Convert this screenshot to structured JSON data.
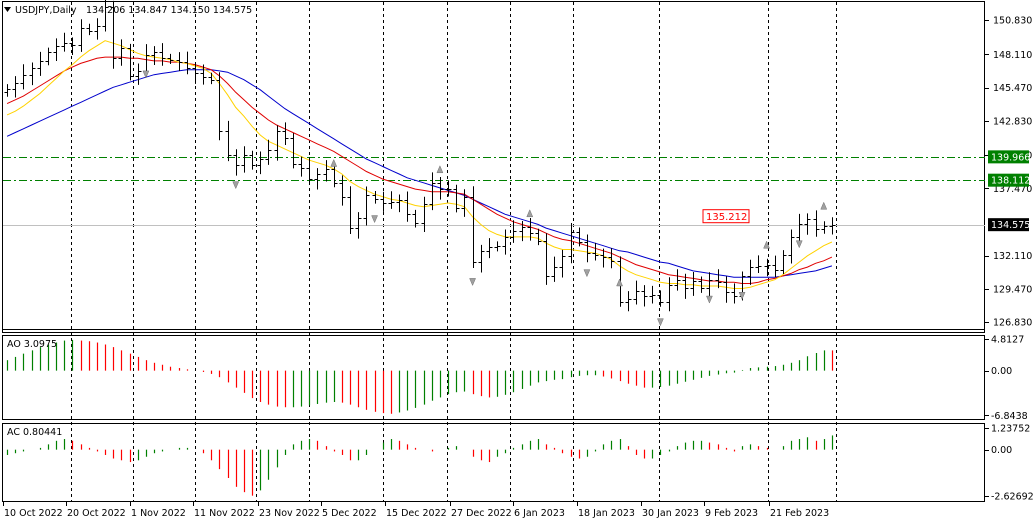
{
  "header": {
    "symbol": "USDJPY,Daily",
    "ohlc": "134.206 134.847 134.150 134.575"
  },
  "colors": {
    "bull": "#008000",
    "bear": "#ff0000",
    "ma_fast": "#ffd200",
    "ma_mid": "#e00000",
    "ma_slow": "#0000cc",
    "level_line": "#008000",
    "price_line": "#c0c0c0"
  },
  "chart_data": [
    {
      "type": "candlestick",
      "name": "price",
      "title": "USDJPY,Daily",
      "ohlc_label": "134.206 134.847 134.150 134.575",
      "y_ticks": [
        "150.830",
        "148.110",
        "145.470",
        "142.830",
        "140.110",
        "137.470",
        "134.575",
        "132.110",
        "129.470",
        "126.830"
      ],
      "ylim": [
        126.2,
        152.2
      ],
      "date_labels": [
        "10 Oct 2022",
        "20 Oct 2022",
        "1 Nov 2022",
        "11 Nov 2022",
        "23 Nov 2022",
        "5 Dec 2022",
        "15 Dec 2022",
        "27 Dec 2022",
        "6 Jan 2023",
        "18 Jan 2023",
        "30 Jan 2023",
        "9 Feb 2023",
        "21 Feb 2023"
      ],
      "horizontal_levels": [
        {
          "value": 139.966,
          "label": "139.966"
        },
        {
          "value": 138.112,
          "label": "138.112"
        }
      ],
      "current_price": {
        "value": 134.575,
        "label": "134.575"
      },
      "annotation": {
        "value": 135.212,
        "label": "135.212"
      },
      "closes": [
        145.4,
        145.8,
        146.5,
        147.0,
        147.6,
        148.3,
        148.8,
        149.0,
        148.9,
        150.2,
        150.0,
        150.4,
        151.9,
        147.8,
        148.6,
        146.4,
        146.8,
        148.1,
        148.3,
        147.8,
        147.7,
        147.5,
        147.0,
        146.6,
        146.3,
        146.1,
        142.0,
        140.1,
        139.3,
        140.1,
        139.3,
        139.8,
        140.5,
        142.0,
        141.5,
        139.4,
        139.1,
        138.2,
        138.6,
        139.0,
        137.9,
        136.8,
        134.3,
        135.1,
        136.9,
        136.6,
        136.3,
        136.4,
        136.5,
        135.4,
        134.7,
        136.2,
        137.9,
        137.4,
        137.4,
        135.9,
        136.8,
        131.6,
        132.5,
        132.8,
        132.9,
        133.6,
        134.1,
        134.4,
        133.9,
        133.3,
        130.5,
        131.2,
        132.1,
        134.0,
        133.2,
        132.3,
        132.2,
        132.0,
        131.7,
        128.4,
        128.7,
        129.3,
        128.9,
        129.0,
        128.4,
        129.8,
        130.2,
        129.5,
        130.1,
        129.5,
        130.2,
        130.0,
        129.2,
        128.9,
        130.5,
        131.2,
        131.3,
        131.4,
        131.0,
        132.2,
        133.6,
        134.6,
        135.0,
        134.2,
        134.5,
        134.575
      ],
      "ma_fast": [
        143.3,
        143.6,
        144.0,
        144.5,
        145.0,
        145.6,
        146.2,
        146.8,
        147.3,
        147.9,
        148.4,
        148.8,
        149.2,
        149.0,
        148.8,
        148.5,
        148.2,
        148.0,
        147.9,
        147.8,
        147.7,
        147.5,
        147.4,
        147.2,
        147.0,
        146.6,
        145.8,
        144.9,
        143.9,
        143.2,
        142.4,
        141.7,
        141.2,
        140.9,
        140.6,
        140.3,
        140.0,
        139.7,
        139.5,
        139.3,
        139.0,
        138.6,
        138.0,
        137.6,
        137.3,
        137.0,
        136.8,
        136.6,
        136.5,
        136.3,
        136.1,
        136.0,
        136.1,
        136.2,
        136.3,
        136.2,
        136.0,
        135.2,
        134.6,
        134.1,
        133.8,
        133.6,
        133.6,
        133.6,
        133.6,
        133.5,
        133.1,
        132.8,
        132.6,
        132.6,
        132.5,
        132.4,
        132.3,
        132.1,
        131.8,
        131.3,
        130.9,
        130.6,
        130.4,
        130.2,
        130.0,
        129.9,
        129.9,
        129.8,
        129.8,
        129.7,
        129.7,
        129.7,
        129.6,
        129.5,
        129.5,
        129.6,
        129.8,
        130.0,
        130.2,
        130.6,
        131.1,
        131.6,
        132.1,
        132.5,
        132.9,
        133.2
      ],
      "ma_mid": [
        144.2,
        144.5,
        144.8,
        145.2,
        145.6,
        146.0,
        146.4,
        146.8,
        147.1,
        147.4,
        147.6,
        147.8,
        147.9,
        147.9,
        147.9,
        147.8,
        147.8,
        147.7,
        147.6,
        147.6,
        147.5,
        147.5,
        147.4,
        147.3,
        147.1,
        146.9,
        146.4,
        145.8,
        145.1,
        144.5,
        143.9,
        143.4,
        142.9,
        142.5,
        142.2,
        141.9,
        141.6,
        141.3,
        141.0,
        140.7,
        140.4,
        140.0,
        139.6,
        139.2,
        138.8,
        138.5,
        138.2,
        138.0,
        137.8,
        137.6,
        137.4,
        137.3,
        137.2,
        137.2,
        137.2,
        137.1,
        137.0,
        136.6,
        136.2,
        135.8,
        135.4,
        135.1,
        134.8,
        134.6,
        134.4,
        134.2,
        133.9,
        133.6,
        133.4,
        133.3,
        133.1,
        132.9,
        132.7,
        132.5,
        132.3,
        132.0,
        131.7,
        131.4,
        131.2,
        131.0,
        130.8,
        130.6,
        130.5,
        130.4,
        130.3,
        130.2,
        130.1,
        130.1,
        130.0,
        130.0,
        129.9,
        129.9,
        130.0,
        130.2,
        130.3,
        130.5,
        130.7,
        131.0,
        131.2,
        131.5,
        131.7,
        132.0
      ],
      "ma_slow": [
        141.6,
        141.9,
        142.2,
        142.5,
        142.8,
        143.1,
        143.4,
        143.7,
        144.0,
        144.3,
        144.6,
        144.9,
        145.2,
        145.5,
        145.7,
        145.9,
        146.1,
        146.3,
        146.5,
        146.6,
        146.7,
        146.8,
        146.9,
        146.9,
        146.9,
        146.9,
        146.8,
        146.7,
        146.4,
        146.1,
        145.7,
        145.3,
        144.8,
        144.3,
        143.8,
        143.4,
        143.0,
        142.6,
        142.2,
        141.8,
        141.4,
        141.0,
        140.6,
        140.2,
        139.8,
        139.5,
        139.2,
        138.9,
        138.6,
        138.3,
        138.1,
        137.9,
        137.7,
        137.5,
        137.3,
        137.1,
        136.9,
        136.6,
        136.3,
        136.0,
        135.7,
        135.4,
        135.2,
        135.0,
        134.8,
        134.6,
        134.3,
        134.1,
        133.9,
        133.7,
        133.5,
        133.3,
        133.1,
        132.9,
        132.7,
        132.5,
        132.4,
        132.2,
        132.0,
        131.8,
        131.6,
        131.5,
        131.3,
        131.1,
        130.9,
        130.8,
        130.7,
        130.6,
        130.5,
        130.4,
        130.4,
        130.4,
        130.4,
        130.4,
        130.4,
        130.5,
        130.6,
        130.7,
        130.8,
        130.9,
        131.1,
        131.3
      ]
    },
    {
      "type": "histogram",
      "name": "ao",
      "label": "AO 3.0975",
      "y_ticks": [
        "4.8127",
        "0.00",
        "-6.8438"
      ],
      "ylim": [
        -7.4,
        5.3
      ],
      "values": [
        1.6,
        2.1,
        2.6,
        3.1,
        3.6,
        4.0,
        4.3,
        4.6,
        4.7,
        4.6,
        4.5,
        4.3,
        4.0,
        3.6,
        3.1,
        2.6,
        2.1,
        1.6,
        1.2,
        0.9,
        0.6,
        0.4,
        0.2,
        0.0,
        -0.2,
        -0.5,
        -1.0,
        -1.8,
        -2.6,
        -3.4,
        -4.2,
        -4.8,
        -5.2,
        -5.5,
        -5.6,
        -5.6,
        -5.5,
        -5.3,
        -5.1,
        -4.9,
        -4.8,
        -4.9,
        -5.2,
        -5.6,
        -6.0,
        -6.3,
        -6.5,
        -6.6,
        -6.4,
        -6.1,
        -5.7,
        -5.2,
        -4.6,
        -4.1,
        -3.6,
        -3.3,
        -3.2,
        -3.6,
        -3.9,
        -4.1,
        -4.0,
        -3.7,
        -3.3,
        -2.8,
        -2.3,
        -1.8,
        -1.6,
        -1.4,
        -1.3,
        -1.0,
        -0.8,
        -0.7,
        -0.7,
        -0.9,
        -1.2,
        -1.6,
        -2.0,
        -2.3,
        -2.6,
        -2.6,
        -2.5,
        -2.3,
        -2.0,
        -1.7,
        -1.4,
        -1.1,
        -0.8,
        -0.6,
        -0.4,
        -0.3,
        0.1,
        0.4,
        0.5,
        0.6,
        0.7,
        0.9,
        1.2,
        1.6,
        2.2,
        2.7,
        3.1,
        3.0975
      ]
    },
    {
      "type": "histogram",
      "name": "ac",
      "label": "AC 0.80441",
      "y_ticks": [
        "1.23752",
        "0.00",
        "-2.62692"
      ],
      "ylim": [
        -2.9,
        1.45
      ],
      "values": [
        -0.3,
        -0.2,
        -0.1,
        0.0,
        0.1,
        0.3,
        0.5,
        0.6,
        0.5,
        0.3,
        0.1,
        -0.1,
        -0.3,
        -0.5,
        -0.6,
        -0.7,
        -0.6,
        -0.4,
        -0.2,
        -0.1,
        0.0,
        0.1,
        0.1,
        0.0,
        -0.2,
        -0.6,
        -1.1,
        -1.6,
        -2.1,
        -2.4,
        -2.6,
        -2.3,
        -1.7,
        -1.0,
        -0.3,
        0.3,
        0.5,
        0.6,
        0.5,
        0.2,
        -0.1,
        -0.3,
        -0.6,
        -0.6,
        -0.3,
        0.0,
        0.4,
        0.6,
        0.5,
        0.3,
        0.1,
        0.0,
        -0.1,
        0.0,
        0.1,
        0.2,
        0.0,
        -0.4,
        -0.6,
        -0.7,
        -0.4,
        -0.2,
        0.1,
        0.3,
        0.5,
        0.6,
        0.3,
        0.1,
        -0.2,
        -0.4,
        -0.5,
        -0.4,
        -0.1,
        0.3,
        0.5,
        0.6,
        0.2,
        -0.3,
        -0.5,
        -0.5,
        -0.3,
        -0.1,
        0.2,
        0.4,
        0.5,
        0.5,
        0.4,
        0.3,
        0.1,
        -0.1,
        0.2,
        0.3,
        0.2,
        0.1,
        0.0,
        0.2,
        0.5,
        0.6,
        0.7,
        0.5,
        0.6,
        0.80441
      ]
    }
  ]
}
